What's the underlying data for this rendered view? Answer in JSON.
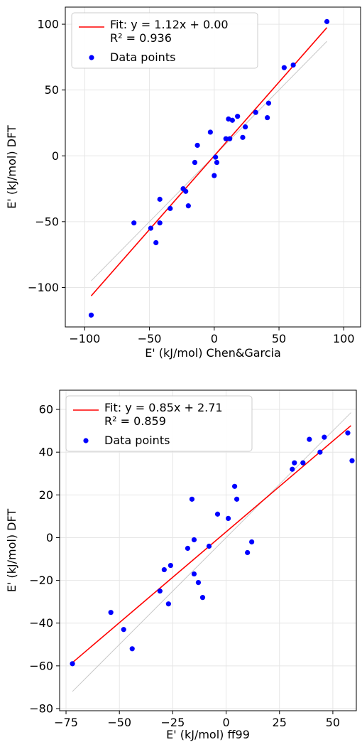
{
  "charts": [
    {
      "type": "scatter",
      "xlabel": "E' (kJ/mol) Chen&Garcia",
      "ylabel": "E' (kJ/mol) DFT",
      "xlim": [
        -115,
        113
      ],
      "ylim": [
        -130,
        113
      ],
      "xticks": [
        -100,
        -50,
        0,
        50,
        100
      ],
      "xtick_labels": [
        "−100",
        "−50",
        "0",
        "50",
        "100"
      ],
      "yticks": [
        -100,
        -50,
        0,
        50,
        100
      ],
      "ytick_labels": [
        "−100",
        "−50",
        "0",
        "50",
        "100"
      ],
      "grid": true,
      "legend_position": "top-left",
      "fit": {
        "label_line1": "Fit: y = 1.12x + 0.00",
        "label_line2": "R² = 0.936",
        "slope": 1.12,
        "intercept": 0.0,
        "x_range": [
          -95,
          87
        ],
        "color": "#ff0000"
      },
      "reference_line": {
        "x_range": [
          -95,
          87
        ],
        "color": "#c8c8c8"
      },
      "points_label": "Data points",
      "points_color": "#0000ff",
      "points": [
        {
          "x": -95,
          "y": -121
        },
        {
          "x": -62,
          "y": -51
        },
        {
          "x": -49,
          "y": -55
        },
        {
          "x": -45,
          "y": -66
        },
        {
          "x": -42,
          "y": -51
        },
        {
          "x": -42,
          "y": -33
        },
        {
          "x": -34,
          "y": -40
        },
        {
          "x": -24,
          "y": -25
        },
        {
          "x": -22,
          "y": -27
        },
        {
          "x": -20,
          "y": -38
        },
        {
          "x": -15,
          "y": -5
        },
        {
          "x": -13,
          "y": 8
        },
        {
          "x": -3,
          "y": 18
        },
        {
          "x": 0,
          "y": -15
        },
        {
          "x": 1,
          "y": -1
        },
        {
          "x": 2,
          "y": -5
        },
        {
          "x": 9,
          "y": 13
        },
        {
          "x": 11,
          "y": 28
        },
        {
          "x": 12,
          "y": 13
        },
        {
          "x": 14,
          "y": 27
        },
        {
          "x": 18,
          "y": 30
        },
        {
          "x": 22,
          "y": 14
        },
        {
          "x": 24,
          "y": 22
        },
        {
          "x": 32,
          "y": 33
        },
        {
          "x": 41,
          "y": 29
        },
        {
          "x": 42,
          "y": 40
        },
        {
          "x": 54,
          "y": 67
        },
        {
          "x": 61,
          "y": 69
        },
        {
          "x": 87,
          "y": 102
        }
      ]
    },
    {
      "type": "scatter",
      "xlabel": "E' (kJ/mol) ff99",
      "ylabel": "E' (kJ/mol) DFT",
      "xlim": [
        -78,
        61
      ],
      "ylim": [
        -81,
        69
      ],
      "xticks": [
        -75,
        -50,
        -25,
        0,
        25,
        50
      ],
      "xtick_labels": [
        "−75",
        "−50",
        "−25",
        "0",
        "25",
        "50"
      ],
      "yticks": [
        -80,
        -60,
        -40,
        -20,
        0,
        20,
        40,
        60
      ],
      "ytick_labels": [
        "−80",
        "−60",
        "−40",
        "−20",
        "0",
        "20",
        "40",
        "60"
      ],
      "grid": true,
      "legend_position": "top-left",
      "fit": {
        "label_line1": "Fit: y = 0.85x + 2.71",
        "label_line2": "R² = 0.859",
        "slope": 0.85,
        "intercept": 2.71,
        "x_range": [
          -72,
          58.5
        ],
        "color": "#ff0000"
      },
      "reference_line": {
        "x_range": [
          -72,
          58.5
        ],
        "color": "#c8c8c8"
      },
      "points_label": "Data points",
      "points_color": "#0000ff",
      "points": [
        {
          "x": -72,
          "y": -59
        },
        {
          "x": -54,
          "y": -35
        },
        {
          "x": -48,
          "y": -43
        },
        {
          "x": -44,
          "y": -52
        },
        {
          "x": -31,
          "y": -25
        },
        {
          "x": -29,
          "y": -15
        },
        {
          "x": -27,
          "y": -31
        },
        {
          "x": -26,
          "y": -13
        },
        {
          "x": -18,
          "y": -5
        },
        {
          "x": -16,
          "y": 18
        },
        {
          "x": -15,
          "y": -1
        },
        {
          "x": -15,
          "y": -17
        },
        {
          "x": -13,
          "y": -21
        },
        {
          "x": -11,
          "y": -28
        },
        {
          "x": -8,
          "y": -4
        },
        {
          "x": -4,
          "y": 11
        },
        {
          "x": 1,
          "y": 9
        },
        {
          "x": 4,
          "y": 24
        },
        {
          "x": 5,
          "y": 18
        },
        {
          "x": 10,
          "y": -7
        },
        {
          "x": 12,
          "y": -2
        },
        {
          "x": 31,
          "y": 32
        },
        {
          "x": 32,
          "y": 35
        },
        {
          "x": 36,
          "y": 35
        },
        {
          "x": 39,
          "y": 46
        },
        {
          "x": 44,
          "y": 40
        },
        {
          "x": 46,
          "y": 47
        },
        {
          "x": 57,
          "y": 49
        },
        {
          "x": 59,
          "y": 36
        }
      ]
    }
  ]
}
